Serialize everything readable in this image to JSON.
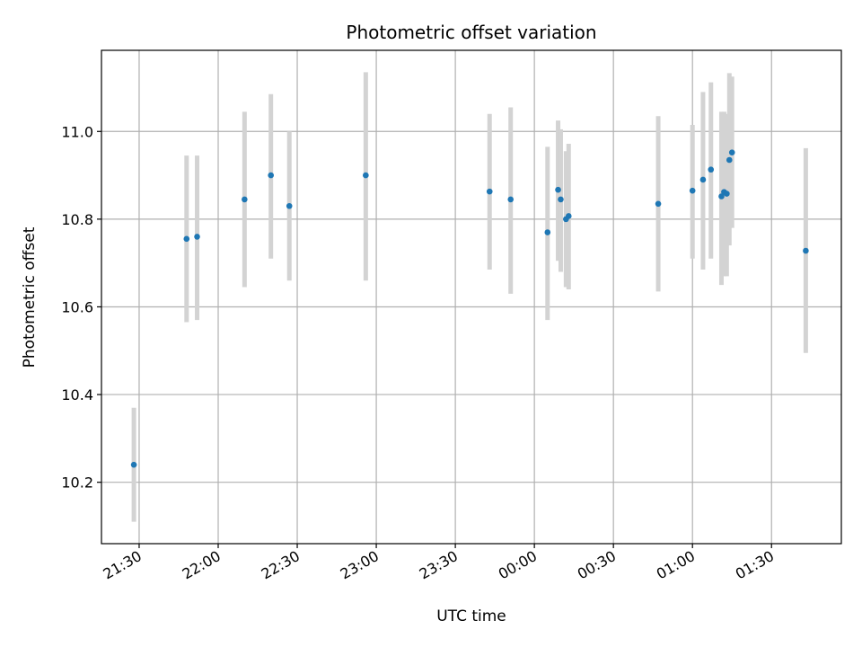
{
  "chart_data": {
    "type": "scatter",
    "title": "Photometric offset variation",
    "xlabel": "UTC time",
    "ylabel": "Photometric offset",
    "x_tick_labels": [
      "21:30",
      "22:00",
      "22:30",
      "23:00",
      "23:30",
      "00:00",
      "00:30",
      "01:00",
      "01:30"
    ],
    "y_tick_labels": [
      "10.2",
      "10.4",
      "10.6",
      "10.8",
      "11.0"
    ],
    "y_ticks": [
      10.2,
      10.4,
      10.6,
      10.8,
      11.0
    ],
    "ylim": [
      10.06,
      11.185
    ],
    "grid": true,
    "colors": {
      "point": "#1f77b4",
      "errorbar": "#d3d3d3",
      "grid": "#b0b0b0"
    },
    "points": [
      {
        "x": "21:28",
        "y": 10.24,
        "yerr_low": 10.11,
        "yerr_high": 10.37
      },
      {
        "x": "21:48",
        "y": 10.755,
        "yerr_low": 10.565,
        "yerr_high": 10.945
      },
      {
        "x": "21:52",
        "y": 10.76,
        "yerr_low": 10.57,
        "yerr_high": 10.945
      },
      {
        "x": "22:10",
        "y": 10.845,
        "yerr_low": 10.645,
        "yerr_high": 11.045
      },
      {
        "x": "22:20",
        "y": 10.9,
        "yerr_low": 10.71,
        "yerr_high": 11.085
      },
      {
        "x": "22:27",
        "y": 10.83,
        "yerr_low": 10.66,
        "yerr_high": 11.0
      },
      {
        "x": "22:56",
        "y": 10.9,
        "yerr_low": 10.66,
        "yerr_high": 11.135
      },
      {
        "x": "23:43",
        "y": 10.863,
        "yerr_low": 10.685,
        "yerr_high": 11.04
      },
      {
        "x": "23:51",
        "y": 10.845,
        "yerr_low": 10.63,
        "yerr_high": 11.055
      },
      {
        "x": "00:05",
        "y": 10.77,
        "yerr_low": 10.57,
        "yerr_high": 10.965
      },
      {
        "x": "00:09",
        "y": 10.867,
        "yerr_low": 10.705,
        "yerr_high": 11.025
      },
      {
        "x": "00:10",
        "y": 10.845,
        "yerr_low": 10.68,
        "yerr_high": 11.005
      },
      {
        "x": "00:12",
        "y": 10.8,
        "yerr_low": 10.645,
        "yerr_high": 10.955
      },
      {
        "x": "00:13",
        "y": 10.807,
        "yerr_low": 10.64,
        "yerr_high": 10.972
      },
      {
        "x": "00:47",
        "y": 10.835,
        "yerr_low": 10.635,
        "yerr_high": 11.035
      },
      {
        "x": "01:00",
        "y": 10.865,
        "yerr_low": 10.71,
        "yerr_high": 11.015
      },
      {
        "x": "01:04",
        "y": 10.89,
        "yerr_low": 10.685,
        "yerr_high": 11.09
      },
      {
        "x": "01:07",
        "y": 10.913,
        "yerr_low": 10.71,
        "yerr_high": 11.112
      },
      {
        "x": "01:11",
        "y": 10.852,
        "yerr_low": 10.65,
        "yerr_high": 11.045
      },
      {
        "x": "01:12",
        "y": 10.862,
        "yerr_low": 10.67,
        "yerr_high": 11.045
      },
      {
        "x": "01:13",
        "y": 10.858,
        "yerr_low": 10.67,
        "yerr_high": 11.04
      },
      {
        "x": "01:14",
        "y": 10.935,
        "yerr_low": 10.74,
        "yerr_high": 11.133
      },
      {
        "x": "01:15",
        "y": 10.952,
        "yerr_low": 10.78,
        "yerr_high": 11.125
      },
      {
        "x": "01:43",
        "y": 10.728,
        "yerr_low": 10.495,
        "yerr_high": 10.962
      }
    ]
  }
}
